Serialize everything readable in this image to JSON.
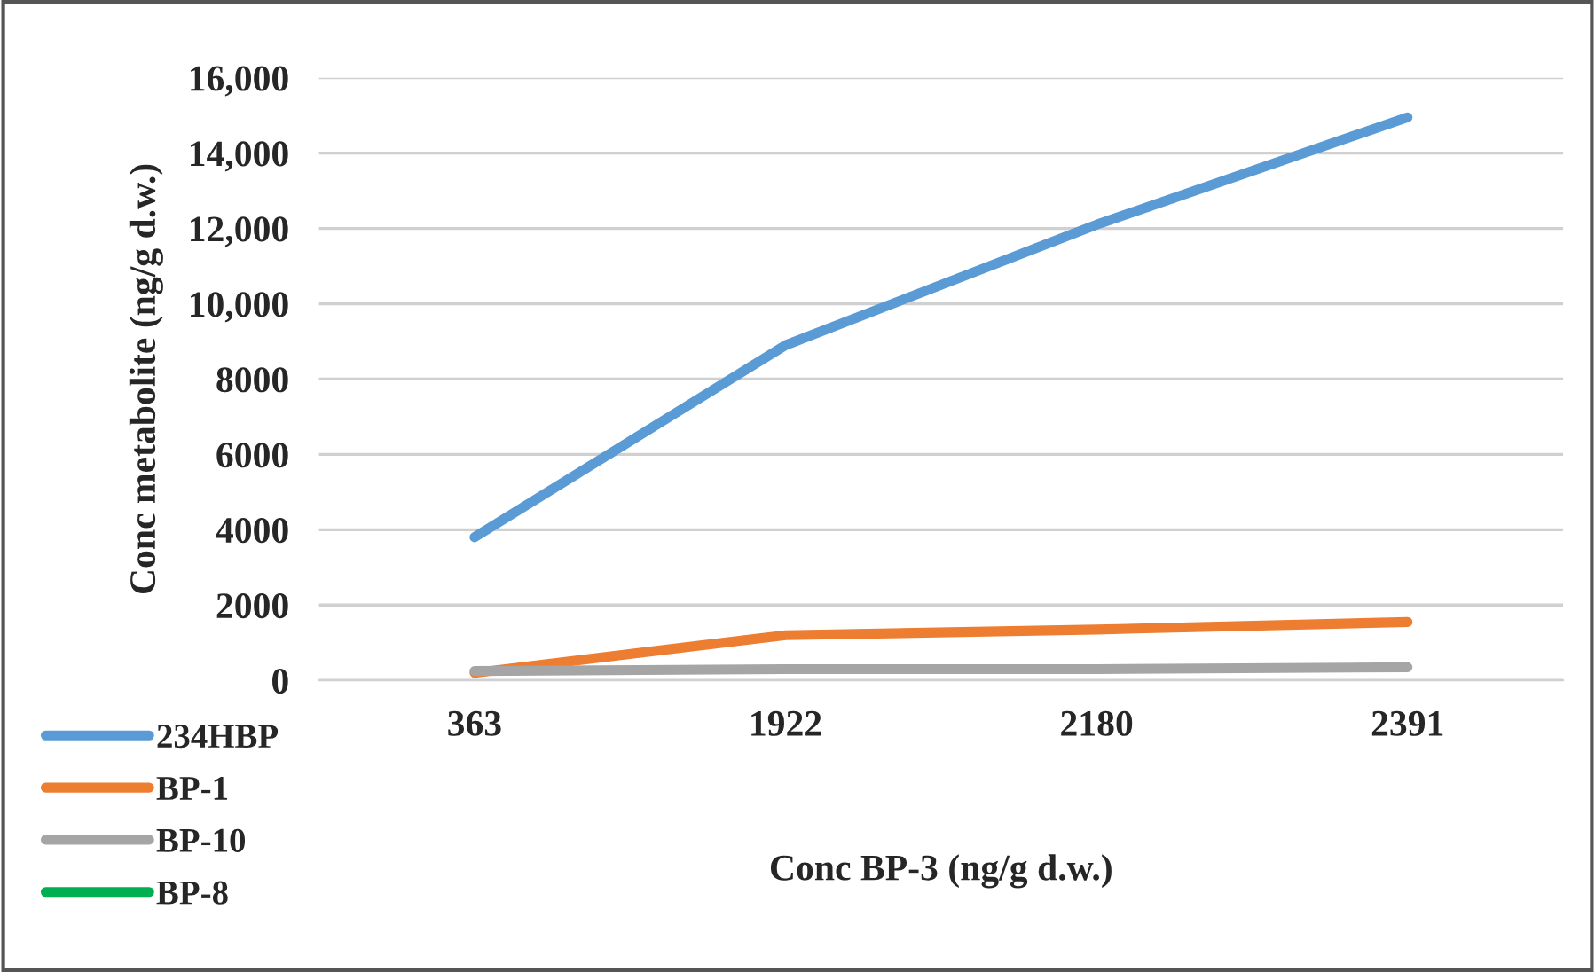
{
  "chart_data": {
    "type": "line",
    "xlabel": "Conc BP-3 (ng/g d.w.)",
    "ylabel": "Conc metabolite (ng/g d.w.)",
    "categories": [
      "363",
      "1922",
      "2180",
      "2391"
    ],
    "series": [
      {
        "name": "234HBP",
        "color": "#5b9bd5",
        "values": [
          3800,
          8900,
          12100,
          14950
        ]
      },
      {
        "name": "BP-1",
        "color": "#ed7d31",
        "values": [
          200,
          1200,
          1350,
          1550
        ]
      },
      {
        "name": "BP-10",
        "color": "#a5a5a5",
        "values": [
          250,
          300,
          300,
          350
        ]
      },
      {
        "name": "BP-8",
        "color": "#00b050",
        "values": [
          null,
          null,
          null,
          null
        ]
      }
    ],
    "ylim": [
      0,
      16000
    ],
    "yticks": [
      0,
      2000,
      4000,
      6000,
      8000,
      {
        "value": 10000,
        "label": "10,000"
      },
      {
        "value": 12000,
        "label": "12,000"
      },
      {
        "value": 14000,
        "label": "14,000"
      },
      {
        "value": 16000,
        "label": "16,000"
      }
    ],
    "grid": "y",
    "legend": "bottom left",
    "marker": "none",
    "line_style": "solid"
  }
}
